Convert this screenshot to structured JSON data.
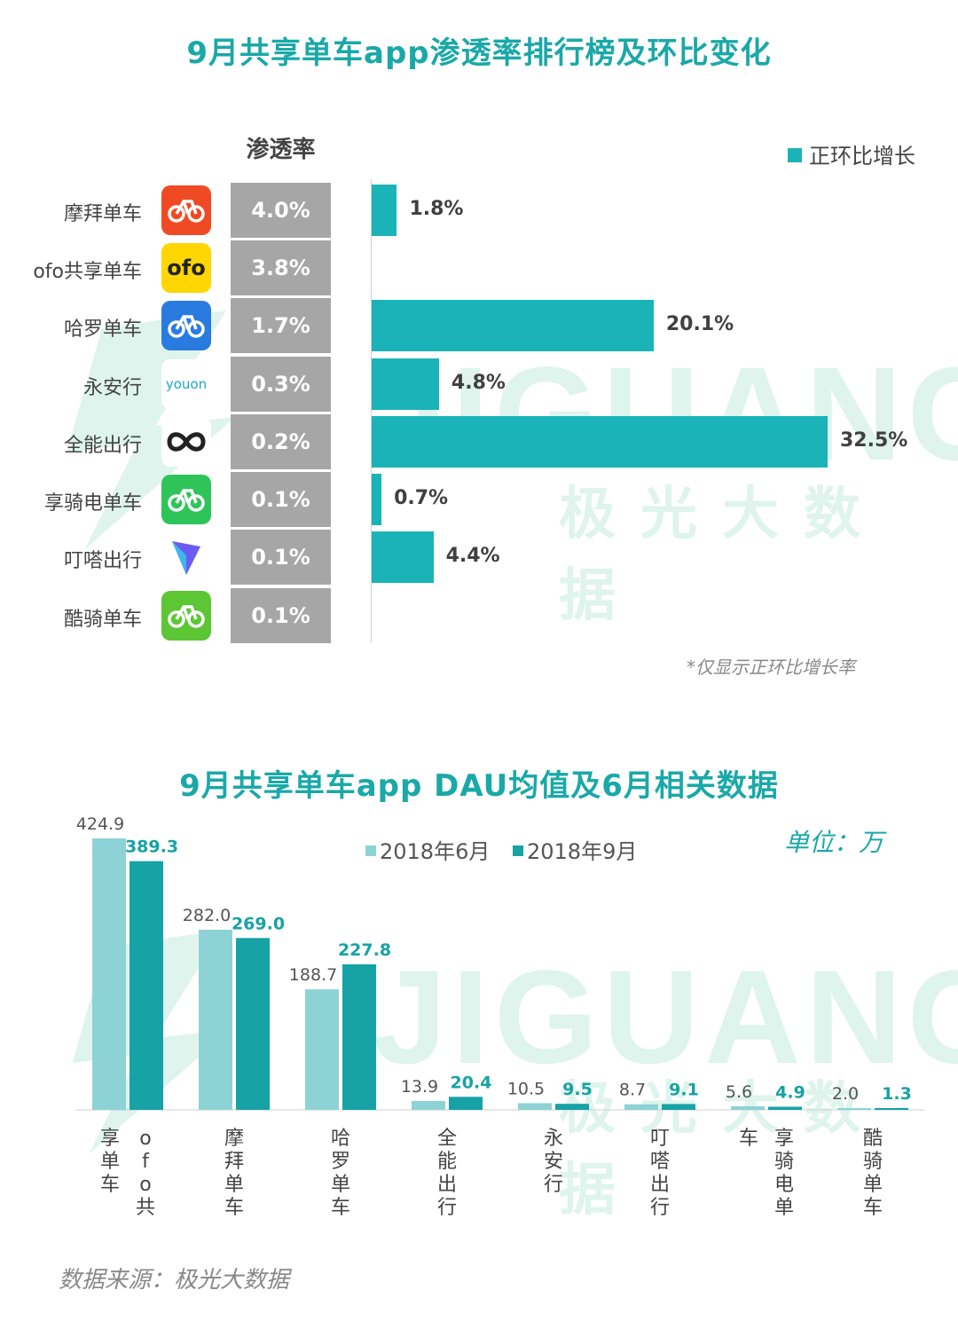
{
  "chart_data": [
    {
      "type": "bar",
      "title": "9月共享单车app渗透率排行榜及环比变化",
      "column_header": "渗透率",
      "legend": [
        "正环比增长"
      ],
      "note": "*仅显示正环比增长率",
      "categories": [
        "摩拜单车",
        "ofo共享单车",
        "哈罗单车",
        "永安行",
        "全能出行",
        "享骑电单车",
        "叮嗒出行",
        "酷骑单车"
      ],
      "penetration": [
        "4.0%",
        "3.8%",
        "1.7%",
        "0.3%",
        "0.2%",
        "0.1%",
        "0.1%",
        "0.1%"
      ],
      "series": [
        {
          "name": "正环比增长",
          "values": [
            1.8,
            null,
            20.1,
            4.8,
            32.5,
            0.7,
            4.4,
            null
          ],
          "labels": [
            "1.8%",
            "",
            "20.1%",
            "4.8%",
            "32.5%",
            "0.7%",
            "4.4%",
            ""
          ]
        }
      ],
      "xlim": [
        0,
        32.5
      ]
    },
    {
      "type": "bar",
      "title": "9月共享单车app DAU均值及6月相关数据",
      "unit": "单位：万",
      "categories": [
        "ofo共享单车",
        "摩拜单车",
        "哈罗单车",
        "全能出行",
        "永安行",
        "叮嗒出行",
        "享骑电单车",
        "酷骑单车"
      ],
      "series": [
        {
          "name": "2018年6月",
          "values": [
            424.9,
            282.0,
            188.7,
            13.9,
            10.5,
            8.7,
            5.6,
            2.0
          ],
          "labels": [
            "424.9",
            "282.0",
            "188.7",
            "13.9",
            "10.5",
            "8.7",
            "5.6",
            "2.0"
          ]
        },
        {
          "name": "2018年9月",
          "values": [
            389.3,
            269.0,
            227.8,
            20.4,
            9.5,
            9.1,
            4.9,
            1.3
          ],
          "labels": [
            "389.3",
            "269.0",
            "227.8",
            "20.4",
            "9.5",
            "9.1",
            "4.9",
            "1.3"
          ]
        }
      ],
      "ylim": [
        0,
        424.9
      ]
    }
  ],
  "colors": {
    "title": "#1aa8a8",
    "growth": "#1ab4b8",
    "june": "#8dd3d6",
    "sept": "#17a2a6",
    "penetration_cell": "#a6a6a6",
    "watermark": "#3bbf93"
  },
  "icons": [
    {
      "name": "mobike-icon",
      "bg": "#f04a24",
      "glyph": "bike",
      "sub": "摩拜"
    },
    {
      "name": "ofo-icon",
      "bg": "#ffd600",
      "glyph": "ofo"
    },
    {
      "name": "hellobike-icon",
      "bg": "#2a7be0",
      "glyph": "bike"
    },
    {
      "name": "youon-icon",
      "bg": "#ffffff",
      "glyph": "youon"
    },
    {
      "name": "quanneng-icon",
      "bg": "#ffffff",
      "glyph": "infinity"
    },
    {
      "name": "xiangqi-icon",
      "bg": "#2ec45a",
      "glyph": "bike"
    },
    {
      "name": "dingda-icon",
      "bg": "#ffffff",
      "glyph": "arrow"
    },
    {
      "name": "kuqi-icon",
      "bg": "#5cc635",
      "glyph": "bike"
    }
  ],
  "watermark": {
    "en": "JIGUANG",
    "cn": "极光大数据"
  },
  "footer": {
    "source": "数据来源：极光大数据"
  }
}
